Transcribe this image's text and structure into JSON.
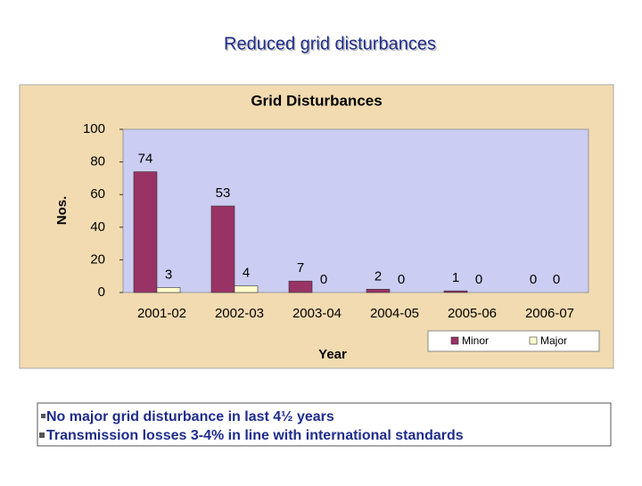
{
  "title": "Reduced grid disturbances",
  "chart_data": {
    "type": "bar",
    "title": "Grid Disturbances",
    "x_label": "Year",
    "y_label": "Nos.",
    "categories": [
      "2001-02",
      "2002-03",
      "2003-04",
      "2004-05",
      "2005-06",
      "2006-07"
    ],
    "series": [
      {
        "name": "Minor",
        "color": "#993366",
        "values": [
          74,
          53,
          7,
          2,
          1,
          0
        ]
      },
      {
        "name": "Major",
        "color": "#ffffcc",
        "values": [
          3,
          4,
          0,
          0,
          0,
          0
        ]
      }
    ],
    "ylim": [
      0,
      100
    ],
    "yticks": [
      0,
      20,
      40,
      60,
      80,
      100
    ],
    "grid": false,
    "legend": "bottom-right"
  },
  "bullets": [
    "No major grid disturbance in last 4½ years",
    "Transmission losses 3-4% in line with international standards"
  ]
}
